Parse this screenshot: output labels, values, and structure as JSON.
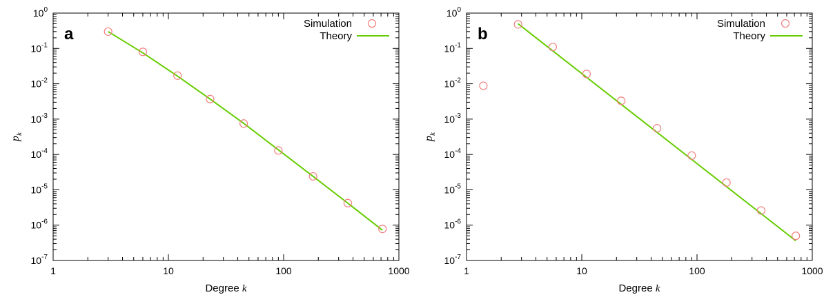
{
  "chart_data": [
    {
      "type": "scatter",
      "panel_label": "a",
      "xlabel": "Degree",
      "xlabel_var": "k",
      "ylabel_var": "p",
      "ylabel_sub": "k",
      "xscale": "log",
      "yscale": "log",
      "xlim": [
        1,
        1000
      ],
      "ylim": [
        1e-07,
        1
      ],
      "x_ticks": [
        "1",
        "10",
        "100",
        "1000"
      ],
      "y_ticks": [
        {
          "base": "10",
          "exp": "-7"
        },
        {
          "base": "10",
          "exp": "-6"
        },
        {
          "base": "10",
          "exp": "-5"
        },
        {
          "base": "10",
          "exp": "-4"
        },
        {
          "base": "10",
          "exp": "-3"
        },
        {
          "base": "10",
          "exp": "-2"
        },
        {
          "base": "10",
          "exp": "-1"
        },
        {
          "base": "10",
          "exp": "0"
        }
      ],
      "legend_placement": "top-right",
      "series": [
        {
          "name": "Simulation",
          "kind": "points",
          "color": "#f08080",
          "x": [
            3,
            6,
            12,
            23,
            45,
            90,
            180,
            360,
            720
          ],
          "y": [
            0.3,
            0.08,
            0.017,
            0.0037,
            0.00075,
            0.00013,
            2.4e-05,
            4.2e-06,
            7.8e-07
          ]
        },
        {
          "name": "Theory",
          "kind": "line",
          "color": "#66cc00",
          "x": [
            3,
            6,
            12,
            23,
            45,
            90,
            180,
            360,
            720
          ],
          "y": [
            0.3,
            0.075,
            0.0165,
            0.0037,
            0.00076,
            0.000135,
            2.4e-05,
            4.2e-06,
            7.2e-07
          ]
        }
      ]
    },
    {
      "type": "scatter",
      "panel_label": "b",
      "xlabel": "Degree",
      "xlabel_var": "k",
      "ylabel_var": "p",
      "ylabel_sub": "k",
      "xscale": "log",
      "yscale": "log",
      "xlim": [
        1,
        1000
      ],
      "ylim": [
        1e-07,
        1
      ],
      "x_ticks": [
        "1",
        "10",
        "100",
        "1000"
      ],
      "y_ticks": [
        {
          "base": "10",
          "exp": "-7"
        },
        {
          "base": "10",
          "exp": "-6"
        },
        {
          "base": "10",
          "exp": "-5"
        },
        {
          "base": "10",
          "exp": "-4"
        },
        {
          "base": "10",
          "exp": "-3"
        },
        {
          "base": "10",
          "exp": "-2"
        },
        {
          "base": "10",
          "exp": "-1"
        },
        {
          "base": "10",
          "exp": "0"
        }
      ],
      "legend_placement": "top-right",
      "series": [
        {
          "name": "Simulation",
          "kind": "points",
          "color": "#f08080",
          "x": [
            1.4,
            2.8,
            5.6,
            11,
            22,
            45,
            90,
            180,
            360,
            720
          ],
          "y": [
            0.0088,
            0.48,
            0.11,
            0.019,
            0.0033,
            0.00055,
            9.3e-05,
            1.6e-05,
            2.6e-06,
            5e-07
          ]
        },
        {
          "name": "Theory",
          "kind": "line",
          "color": "#66cc00",
          "x": [
            2.8,
            720
          ],
          "y": [
            0.5,
            3.6e-07
          ]
        }
      ]
    }
  ]
}
